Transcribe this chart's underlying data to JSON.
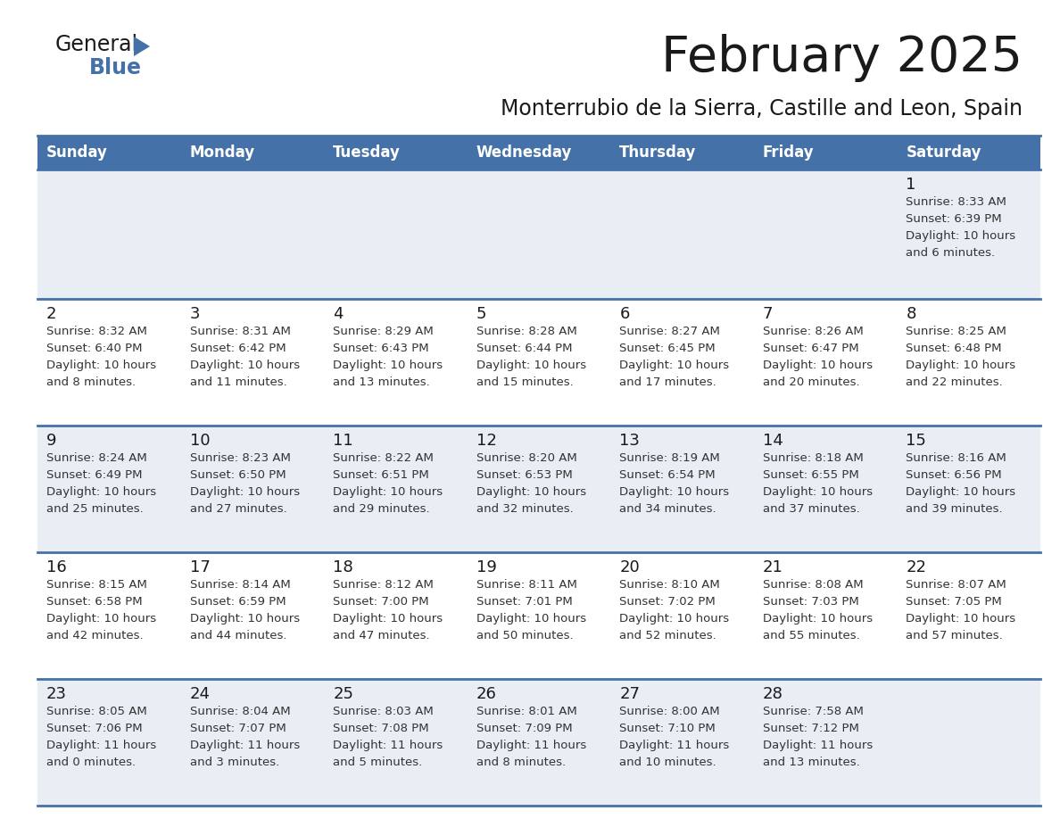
{
  "title": "February 2025",
  "subtitle": "Monterrubio de la Sierra, Castille and Leon, Spain",
  "header_color": "#4472a8",
  "header_text_color": "#ffffff",
  "row_even_color": "#e8eef4",
  "row_odd_color": "#ffffff",
  "border_color": "#4472a8",
  "text_color": "#333333",
  "day_num_color": "#1a1a1a",
  "day_headers": [
    "Sunday",
    "Monday",
    "Tuesday",
    "Wednesday",
    "Thursday",
    "Friday",
    "Saturday"
  ],
  "weeks": [
    [
      {
        "day": null,
        "sunrise": null,
        "sunset": null,
        "daylight_line1": null,
        "daylight_line2": null
      },
      {
        "day": null,
        "sunrise": null,
        "sunset": null,
        "daylight_line1": null,
        "daylight_line2": null
      },
      {
        "day": null,
        "sunrise": null,
        "sunset": null,
        "daylight_line1": null,
        "daylight_line2": null
      },
      {
        "day": null,
        "sunrise": null,
        "sunset": null,
        "daylight_line1": null,
        "daylight_line2": null
      },
      {
        "day": null,
        "sunrise": null,
        "sunset": null,
        "daylight_line1": null,
        "daylight_line2": null
      },
      {
        "day": null,
        "sunrise": null,
        "sunset": null,
        "daylight_line1": null,
        "daylight_line2": null
      },
      {
        "day": 1,
        "sunrise": "Sunrise: 8:33 AM",
        "sunset": "Sunset: 6:39 PM",
        "daylight_line1": "Daylight: 10 hours",
        "daylight_line2": "and 6 minutes."
      }
    ],
    [
      {
        "day": 2,
        "sunrise": "Sunrise: 8:32 AM",
        "sunset": "Sunset: 6:40 PM",
        "daylight_line1": "Daylight: 10 hours",
        "daylight_line2": "and 8 minutes."
      },
      {
        "day": 3,
        "sunrise": "Sunrise: 8:31 AM",
        "sunset": "Sunset: 6:42 PM",
        "daylight_line1": "Daylight: 10 hours",
        "daylight_line2": "and 11 minutes."
      },
      {
        "day": 4,
        "sunrise": "Sunrise: 8:29 AM",
        "sunset": "Sunset: 6:43 PM",
        "daylight_line1": "Daylight: 10 hours",
        "daylight_line2": "and 13 minutes."
      },
      {
        "day": 5,
        "sunrise": "Sunrise: 8:28 AM",
        "sunset": "Sunset: 6:44 PM",
        "daylight_line1": "Daylight: 10 hours",
        "daylight_line2": "and 15 minutes."
      },
      {
        "day": 6,
        "sunrise": "Sunrise: 8:27 AM",
        "sunset": "Sunset: 6:45 PM",
        "daylight_line1": "Daylight: 10 hours",
        "daylight_line2": "and 17 minutes."
      },
      {
        "day": 7,
        "sunrise": "Sunrise: 8:26 AM",
        "sunset": "Sunset: 6:47 PM",
        "daylight_line1": "Daylight: 10 hours",
        "daylight_line2": "and 20 minutes."
      },
      {
        "day": 8,
        "sunrise": "Sunrise: 8:25 AM",
        "sunset": "Sunset: 6:48 PM",
        "daylight_line1": "Daylight: 10 hours",
        "daylight_line2": "and 22 minutes."
      }
    ],
    [
      {
        "day": 9,
        "sunrise": "Sunrise: 8:24 AM",
        "sunset": "Sunset: 6:49 PM",
        "daylight_line1": "Daylight: 10 hours",
        "daylight_line2": "and 25 minutes."
      },
      {
        "day": 10,
        "sunrise": "Sunrise: 8:23 AM",
        "sunset": "Sunset: 6:50 PM",
        "daylight_line1": "Daylight: 10 hours",
        "daylight_line2": "and 27 minutes."
      },
      {
        "day": 11,
        "sunrise": "Sunrise: 8:22 AM",
        "sunset": "Sunset: 6:51 PM",
        "daylight_line1": "Daylight: 10 hours",
        "daylight_line2": "and 29 minutes."
      },
      {
        "day": 12,
        "sunrise": "Sunrise: 8:20 AM",
        "sunset": "Sunset: 6:53 PM",
        "daylight_line1": "Daylight: 10 hours",
        "daylight_line2": "and 32 minutes."
      },
      {
        "day": 13,
        "sunrise": "Sunrise: 8:19 AM",
        "sunset": "Sunset: 6:54 PM",
        "daylight_line1": "Daylight: 10 hours",
        "daylight_line2": "and 34 minutes."
      },
      {
        "day": 14,
        "sunrise": "Sunrise: 8:18 AM",
        "sunset": "Sunset: 6:55 PM",
        "daylight_line1": "Daylight: 10 hours",
        "daylight_line2": "and 37 minutes."
      },
      {
        "day": 15,
        "sunrise": "Sunrise: 8:16 AM",
        "sunset": "Sunset: 6:56 PM",
        "daylight_line1": "Daylight: 10 hours",
        "daylight_line2": "and 39 minutes."
      }
    ],
    [
      {
        "day": 16,
        "sunrise": "Sunrise: 8:15 AM",
        "sunset": "Sunset: 6:58 PM",
        "daylight_line1": "Daylight: 10 hours",
        "daylight_line2": "and 42 minutes."
      },
      {
        "day": 17,
        "sunrise": "Sunrise: 8:14 AM",
        "sunset": "Sunset: 6:59 PM",
        "daylight_line1": "Daylight: 10 hours",
        "daylight_line2": "and 44 minutes."
      },
      {
        "day": 18,
        "sunrise": "Sunrise: 8:12 AM",
        "sunset": "Sunset: 7:00 PM",
        "daylight_line1": "Daylight: 10 hours",
        "daylight_line2": "and 47 minutes."
      },
      {
        "day": 19,
        "sunrise": "Sunrise: 8:11 AM",
        "sunset": "Sunset: 7:01 PM",
        "daylight_line1": "Daylight: 10 hours",
        "daylight_line2": "and 50 minutes."
      },
      {
        "day": 20,
        "sunrise": "Sunrise: 8:10 AM",
        "sunset": "Sunset: 7:02 PM",
        "daylight_line1": "Daylight: 10 hours",
        "daylight_line2": "and 52 minutes."
      },
      {
        "day": 21,
        "sunrise": "Sunrise: 8:08 AM",
        "sunset": "Sunset: 7:03 PM",
        "daylight_line1": "Daylight: 10 hours",
        "daylight_line2": "and 55 minutes."
      },
      {
        "day": 22,
        "sunrise": "Sunrise: 8:07 AM",
        "sunset": "Sunset: 7:05 PM",
        "daylight_line1": "Daylight: 10 hours",
        "daylight_line2": "and 57 minutes."
      }
    ],
    [
      {
        "day": 23,
        "sunrise": "Sunrise: 8:05 AM",
        "sunset": "Sunset: 7:06 PM",
        "daylight_line1": "Daylight: 11 hours",
        "daylight_line2": "and 0 minutes."
      },
      {
        "day": 24,
        "sunrise": "Sunrise: 8:04 AM",
        "sunset": "Sunset: 7:07 PM",
        "daylight_line1": "Daylight: 11 hours",
        "daylight_line2": "and 3 minutes."
      },
      {
        "day": 25,
        "sunrise": "Sunrise: 8:03 AM",
        "sunset": "Sunset: 7:08 PM",
        "daylight_line1": "Daylight: 11 hours",
        "daylight_line2": "and 5 minutes."
      },
      {
        "day": 26,
        "sunrise": "Sunrise: 8:01 AM",
        "sunset": "Sunset: 7:09 PM",
        "daylight_line1": "Daylight: 11 hours",
        "daylight_line2": "and 8 minutes."
      },
      {
        "day": 27,
        "sunrise": "Sunrise: 8:00 AM",
        "sunset": "Sunset: 7:10 PM",
        "daylight_line1": "Daylight: 11 hours",
        "daylight_line2": "and 10 minutes."
      },
      {
        "day": 28,
        "sunrise": "Sunrise: 7:58 AM",
        "sunset": "Sunset: 7:12 PM",
        "daylight_line1": "Daylight: 11 hours",
        "daylight_line2": "and 13 minutes."
      },
      {
        "day": null,
        "sunrise": null,
        "sunset": null,
        "daylight_line1": null,
        "daylight_line2": null
      }
    ]
  ],
  "fig_width": 11.88,
  "fig_height": 9.18,
  "dpi": 100
}
